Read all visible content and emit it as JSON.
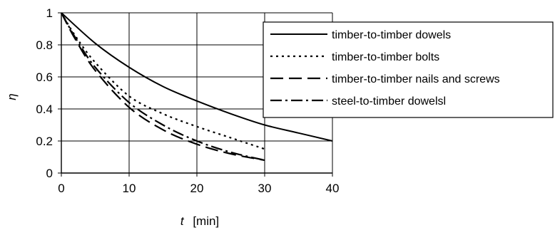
{
  "chart_data": {
    "type": "line",
    "title": "",
    "xlabel_symbol": "t",
    "xlabel_unit": "[min]",
    "ylabel": "η",
    "xlim": [
      0,
      40
    ],
    "ylim": [
      0,
      1
    ],
    "x_ticks": [
      0,
      10,
      20,
      30,
      40
    ],
    "y_ticks": [
      0,
      0.2,
      0.4,
      0.6,
      0.8,
      1
    ],
    "y_tick_labels": [
      "0",
      "0.2",
      "0.4",
      "0.6",
      "0.8",
      "1"
    ],
    "grid": true,
    "legend_placement": "top-right",
    "series": [
      {
        "name": "timber-to-timber dowels",
        "style": "solid",
        "x": [
          0,
          5,
          10,
          15,
          20,
          25,
          30,
          35,
          40
        ],
        "y": [
          1.0,
          0.81,
          0.66,
          0.54,
          0.45,
          0.37,
          0.3,
          0.25,
          0.2
        ]
      },
      {
        "name": "timber-to-timber bolts",
        "style": "dotted",
        "x": [
          0,
          2,
          5,
          10,
          15,
          20,
          25,
          30
        ],
        "y": [
          1.0,
          0.86,
          0.69,
          0.48,
          0.37,
          0.29,
          0.22,
          0.15
        ]
      },
      {
        "name": "timber-to-timber nails and screws",
        "style": "dashed",
        "x": [
          0,
          2,
          5,
          10,
          15,
          20,
          25,
          30
        ],
        "y": [
          1.0,
          0.84,
          0.64,
          0.41,
          0.27,
          0.18,
          0.12,
          0.08
        ]
      },
      {
        "name": "steel-to-timber dowelsl",
        "style": "dashdot",
        "x": [
          0,
          2,
          5,
          10,
          15,
          20,
          25,
          30
        ],
        "y": [
          1.0,
          0.85,
          0.66,
          0.44,
          0.3,
          0.2,
          0.13,
          0.08
        ]
      }
    ]
  }
}
